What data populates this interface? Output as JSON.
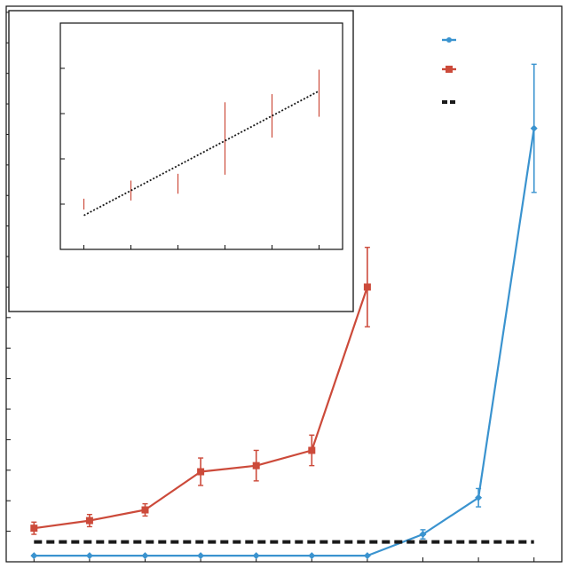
{
  "chart_data": [
    {
      "type": "line",
      "title": "",
      "xlabel": "",
      "ylabel": "",
      "x": [
        1,
        2,
        3,
        4,
        5,
        6,
        7,
        8,
        9,
        10
      ],
      "xlim": [
        0.5,
        10.5
      ],
      "ylim": [
        -0.2,
        18
      ],
      "y_ticks_count": 18,
      "grid": false,
      "legend_position": "top-right",
      "colors": {
        "blue": "#3a93cf",
        "red": "#cc4a3a",
        "dashed": "#1a1a1a"
      },
      "series": [
        {
          "color": "#3a93cf",
          "marker": "diamond",
          "x": [
            1,
            2,
            3,
            4,
            5,
            6,
            7,
            8,
            9,
            10
          ],
          "values": [
            0.0,
            0.0,
            0.0,
            0.0,
            0.0,
            0.0,
            0.0,
            0.7,
            1.9,
            14.0
          ],
          "errors": [
            0,
            0,
            0,
            0,
            0,
            0,
            0,
            0.15,
            0.3,
            2.1
          ]
        },
        {
          "color": "#cc4a3a",
          "marker": "square",
          "x": [
            1,
            2,
            3,
            4,
            5,
            6,
            7
          ],
          "values": [
            0.9,
            1.15,
            1.5,
            2.75,
            2.95,
            3.45,
            8.8
          ],
          "errors": [
            0.2,
            0.2,
            0.2,
            0.45,
            0.5,
            0.5,
            1.3
          ]
        },
        {
          "color": "#1a1a1a",
          "style": "dashed",
          "x": [
            1,
            10
          ],
          "values": [
            0.45,
            0.45
          ]
        }
      ]
    },
    {
      "type": "line",
      "title": "",
      "xlabel": "",
      "ylabel": "",
      "x": [
        1,
        2,
        3,
        4,
        5,
        6
      ],
      "xlim": [
        0.5,
        6.5
      ],
      "ylim": [
        0,
        5
      ],
      "y_ticks": [
        1,
        2,
        3,
        4
      ],
      "grid": false,
      "series": [
        {
          "color": "#cc4a3a",
          "style": "errorbars",
          "x": [
            1,
            2,
            3,
            4,
            5,
            6
          ],
          "values": [
            1.0,
            1.3,
            1.45,
            2.45,
            2.95,
            3.45
          ],
          "errors": [
            0.12,
            0.22,
            0.22,
            0.8,
            0.48,
            0.52
          ]
        },
        {
          "color": "#1a1a1a",
          "style": "dotted-fit",
          "x": [
            1,
            6
          ],
          "values": [
            0.75,
            3.5
          ]
        }
      ]
    }
  ]
}
